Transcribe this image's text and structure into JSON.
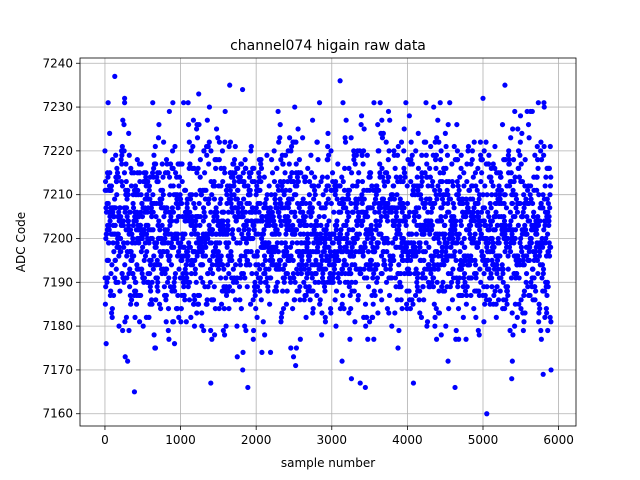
{
  "chart_data": {
    "type": "scatter",
    "title": "channel074 higain raw data",
    "xlabel": "sample number",
    "ylabel": "ADC Code",
    "xlim": [
      -330,
      6230
    ],
    "ylim": [
      7157.2,
      7241.2
    ],
    "xticks": [
      0,
      1000,
      2000,
      3000,
      4000,
      5000,
      6000
    ],
    "yticks": [
      7160,
      7170,
      7180,
      7190,
      7200,
      7210,
      7220,
      7230,
      7240
    ],
    "grid": true,
    "marker_color": "#0000ff",
    "series": [
      {
        "n_points": 5900,
        "baseline": 7202,
        "band_low": 7192,
        "band_high": 7213,
        "range_low": 7160,
        "range_high": 7237,
        "outliers": [
          {
            "x": 130,
            "y": 7237
          },
          {
            "x": 260,
            "y": 7232
          },
          {
            "x": 390,
            "y": 7165
          },
          {
            "x": 1100,
            "y": 7231
          },
          {
            "x": 1240,
            "y": 7233
          },
          {
            "x": 1400,
            "y": 7167
          },
          {
            "x": 1650,
            "y": 7235
          },
          {
            "x": 1820,
            "y": 7234
          },
          {
            "x": 2510,
            "y": 7230
          },
          {
            "x": 3110,
            "y": 7236
          },
          {
            "x": 4080,
            "y": 7167
          },
          {
            "x": 5000,
            "y": 7232
          },
          {
            "x": 5050,
            "y": 7160
          },
          {
            "x": 5290,
            "y": 7235
          },
          {
            "x": 5380,
            "y": 7168
          },
          {
            "x": 5900,
            "y": 7170
          }
        ]
      }
    ]
  }
}
